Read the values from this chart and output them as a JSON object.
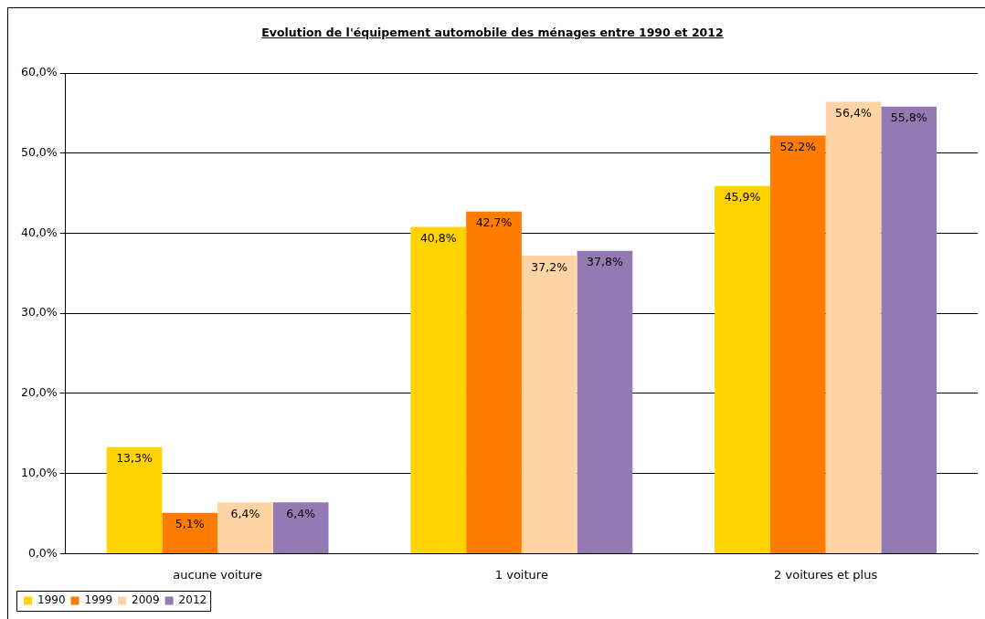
{
  "chart_data": {
    "type": "bar",
    "title": "Evolution de l'équipement automobile des ménages entre 1990 et 2012",
    "categories": [
      "aucune voiture",
      "1 voiture",
      "2 voitures et plus"
    ],
    "series": [
      {
        "name": "1990",
        "color": "#ffd200",
        "values": [
          13.3,
          40.8,
          45.9
        ],
        "value_labels": [
          "13,3%",
          "40,8%",
          "45,9%"
        ]
      },
      {
        "name": "1999",
        "color": "#ff7c00",
        "values": [
          5.1,
          42.7,
          52.2
        ],
        "value_labels": [
          "5,1%",
          "42,7%",
          "52,2%"
        ]
      },
      {
        "name": "2009",
        "color": "#ffd4a4",
        "values": [
          6.4,
          37.2,
          56.4
        ],
        "value_labels": [
          "6,4%",
          "37,2%",
          "56,4%"
        ]
      },
      {
        "name": "2012",
        "color": "#937ab3",
        "values": [
          6.4,
          37.8,
          55.8
        ],
        "value_labels": [
          "6,4%",
          "37,8%",
          "55,8%"
        ]
      }
    ],
    "ylim": [
      0,
      60
    ],
    "yticks": [
      {
        "value": 0,
        "label": "0,0%"
      },
      {
        "value": 10,
        "label": "10,0%"
      },
      {
        "value": 20,
        "label": "20,0%"
      },
      {
        "value": 30,
        "label": "30,0%"
      },
      {
        "value": 40,
        "label": "40,0%"
      },
      {
        "value": 50,
        "label": "50,0%"
      },
      {
        "value": 60,
        "label": "60,0%"
      }
    ],
    "grid": "y",
    "legend": "bottom left"
  }
}
